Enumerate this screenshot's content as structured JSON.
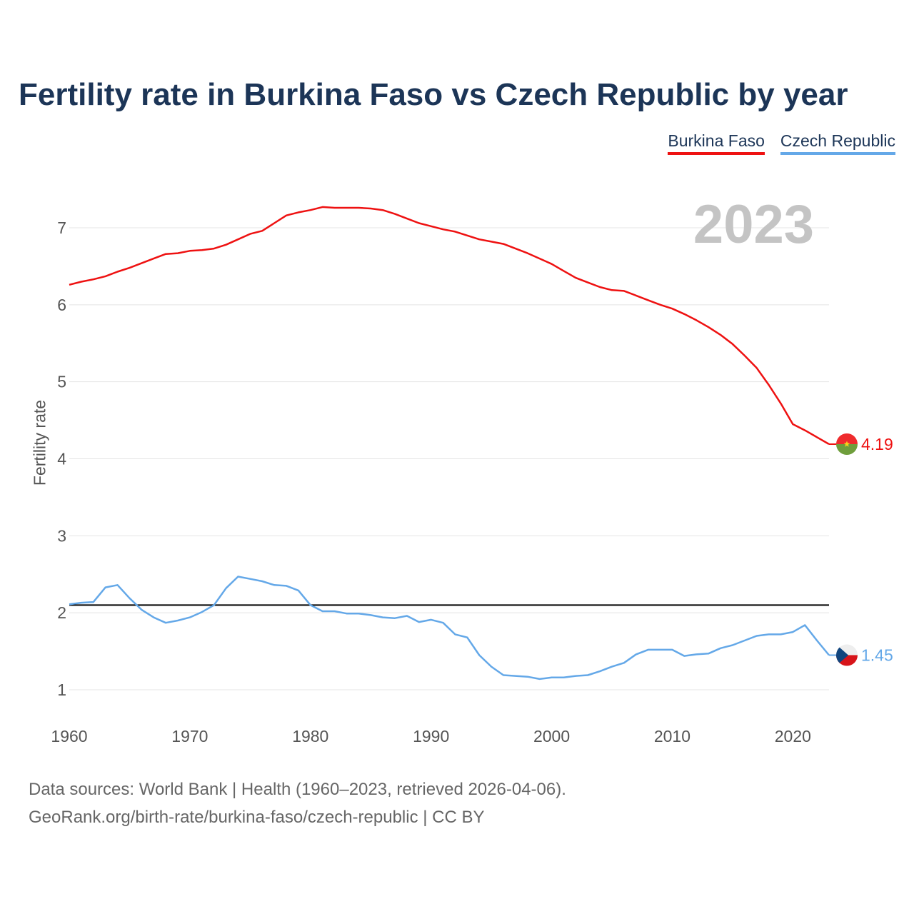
{
  "title": "Fertility rate in Burkina Faso vs Czech Republic by year",
  "legend": [
    {
      "name": "Burkina Faso",
      "color": "#ee1111"
    },
    {
      "name": "Czech Republic",
      "color": "#64a8e8"
    }
  ],
  "year_display": "2023",
  "footer": {
    "line1": "Data sources: World Bank | Health (1960–2023, retrieved 2026-04-06).",
    "line2": "GeoRank.org/birth-rate/burkina-faso/czech-republic | CC BY"
  },
  "chart_data": {
    "type": "line",
    "title": "Fertility rate in Burkina Faso vs Czech Republic by year",
    "xlabel": "",
    "ylabel": "Fertility rate",
    "xlim": [
      1960,
      2023
    ],
    "ylim": [
      1,
      7
    ],
    "xticks": [
      1960,
      1970,
      1980,
      1990,
      2000,
      2010,
      2020
    ],
    "yticks": [
      1,
      2,
      3,
      4,
      5,
      6,
      7
    ],
    "grid": true,
    "reference_line": {
      "y": 2.1,
      "color": "#000000"
    },
    "series": [
      {
        "name": "Burkina Faso",
        "color": "#ee1111",
        "end_label": "4.19",
        "x": [
          1960,
          1961,
          1962,
          1963,
          1964,
          1965,
          1966,
          1967,
          1968,
          1969,
          1970,
          1971,
          1972,
          1973,
          1974,
          1975,
          1976,
          1977,
          1978,
          1979,
          1980,
          1981,
          1982,
          1983,
          1984,
          1985,
          1986,
          1987,
          1988,
          1989,
          1990,
          1991,
          1992,
          1993,
          1994,
          1995,
          1996,
          1997,
          1998,
          1999,
          2000,
          2001,
          2002,
          2003,
          2004,
          2005,
          2006,
          2007,
          2008,
          2009,
          2010,
          2011,
          2012,
          2013,
          2014,
          2015,
          2016,
          2017,
          2018,
          2019,
          2020,
          2021,
          2022,
          2023
        ],
        "values": [
          6.26,
          6.3,
          6.33,
          6.37,
          6.43,
          6.48,
          6.54,
          6.6,
          6.66,
          6.67,
          6.7,
          6.71,
          6.73,
          6.78,
          6.85,
          6.92,
          6.96,
          7.06,
          7.16,
          7.2,
          7.23,
          7.27,
          7.26,
          7.26,
          7.26,
          7.25,
          7.23,
          7.18,
          7.12,
          7.06,
          7.02,
          6.98,
          6.95,
          6.9,
          6.85,
          6.82,
          6.79,
          6.73,
          6.67,
          6.6,
          6.53,
          6.44,
          6.35,
          6.29,
          6.23,
          6.19,
          6.18,
          6.12,
          6.06,
          6.0,
          5.95,
          5.88,
          5.8,
          5.71,
          5.61,
          5.49,
          5.34,
          5.18,
          4.96,
          4.72,
          4.45,
          4.37,
          4.28,
          4.19
        ]
      },
      {
        "name": "Czech Republic",
        "color": "#64a8e8",
        "end_label": "1.45",
        "x": [
          1960,
          1961,
          1962,
          1963,
          1964,
          1965,
          1966,
          1967,
          1968,
          1969,
          1970,
          1971,
          1972,
          1973,
          1974,
          1975,
          1976,
          1977,
          1978,
          1979,
          1980,
          1981,
          1982,
          1983,
          1984,
          1985,
          1986,
          1987,
          1988,
          1989,
          1990,
          1991,
          1992,
          1993,
          1994,
          1995,
          1996,
          1997,
          1998,
          1999,
          2000,
          2001,
          2002,
          2003,
          2004,
          2005,
          2006,
          2007,
          2008,
          2009,
          2010,
          2011,
          2012,
          2013,
          2014,
          2015,
          2016,
          2017,
          2018,
          2019,
          2020,
          2021,
          2022,
          2023
        ],
        "values": [
          2.11,
          2.13,
          2.14,
          2.33,
          2.36,
          2.19,
          2.04,
          1.94,
          1.87,
          1.9,
          1.94,
          2.01,
          2.1,
          2.32,
          2.47,
          2.44,
          2.41,
          2.36,
          2.35,
          2.29,
          2.1,
          2.02,
          2.02,
          1.99,
          1.99,
          1.97,
          1.94,
          1.93,
          1.96,
          1.88,
          1.91,
          1.87,
          1.72,
          1.68,
          1.45,
          1.3,
          1.19,
          1.18,
          1.17,
          1.14,
          1.16,
          1.16,
          1.18,
          1.19,
          1.24,
          1.3,
          1.35,
          1.46,
          1.52,
          1.52,
          1.52,
          1.44,
          1.46,
          1.47,
          1.54,
          1.58,
          1.64,
          1.7,
          1.72,
          1.72,
          1.75,
          1.84,
          1.64,
          1.45
        ]
      }
    ]
  }
}
